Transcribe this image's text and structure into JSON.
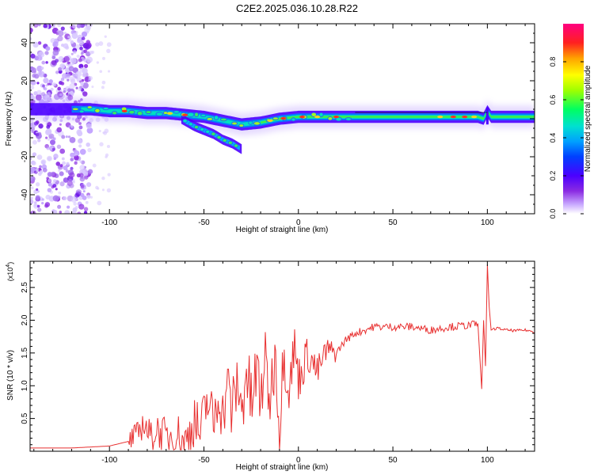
{
  "figure": {
    "title": "C2E2.2025.036.10.28.R22"
  },
  "colors": {
    "snr_line": "#e83030",
    "ridge": [
      "#4a00f0",
      "#2a70ff",
      "#00e0d0",
      "#30f030",
      "#ffd020",
      "#ff2020"
    ]
  },
  "chart_data": [
    {
      "type": "heatmap",
      "xlabel": "Height of straight line (km)",
      "ylabel": "Frequency (Hz)",
      "xlim": [
        -142,
        125
      ],
      "ylim": [
        -50,
        50
      ],
      "x_ticks": [
        -100,
        -50,
        0,
        50,
        100
      ],
      "y_ticks": [
        -40,
        -20,
        0,
        20,
        40
      ],
      "grid": false,
      "colorbar": {
        "label": "Normalized spectral amplitude",
        "range": [
          0,
          1
        ],
        "ticks": [
          "0.0",
          "0.2",
          "0.4",
          "0.6",
          "0.8"
        ],
        "tick_values": [
          0,
          0.2,
          0.4,
          0.6,
          0.8
        ],
        "colors": [
          "#ffffff",
          "#c8a8ff",
          "#8a2be2",
          "#4b00ff",
          "#0040ff",
          "#00a0ff",
          "#00e0d0",
          "#00ff60",
          "#a0ff00",
          "#ffff00",
          "#ffa000",
          "#ff2020",
          "#ff0080"
        ]
      },
      "main_ridge": {
        "x": [
          -142,
          -130,
          -120,
          -110,
          -100,
          -90,
          -80,
          -70,
          -60,
          -50,
          -40,
          -30,
          -20,
          -10,
          0,
          10,
          20,
          40,
          60,
          80,
          95,
          98,
          100,
          102,
          110,
          125
        ],
        "y": [
          5,
          5,
          5,
          5,
          4,
          4,
          3,
          3,
          2,
          1,
          -1,
          -3,
          -2,
          0,
          1,
          1,
          1,
          1,
          1,
          1,
          1,
          0,
          4,
          1,
          1,
          1
        ]
      },
      "secondary_branch": {
        "x": [
          -62,
          -55,
          -50,
          -45,
          -40,
          -35,
          -30
        ],
        "y": [
          0,
          -4,
          -6,
          -8,
          -11,
          -13,
          -16
        ]
      }
    },
    {
      "type": "line",
      "xlabel": "Height of straight line (km)",
      "ylabel": "SNR (10 * v/v)",
      "exponent_label": "(x10",
      "exponent_sup": "4",
      "exponent_close": ")",
      "xlim": [
        -142,
        125
      ],
      "ylim": [
        0,
        2.9
      ],
      "x_ticks": [
        -100,
        -50,
        0,
        50,
        100
      ],
      "y_ticks": [
        0.5,
        1.0,
        1.5,
        2.0,
        2.5
      ],
      "y_tick_labels": [
        "0.5",
        "1.0",
        "1.5",
        "2.0",
        "2.5"
      ],
      "grid": false,
      "series": [
        {
          "x": [
            -142,
            -120,
            -100,
            -90,
            -85,
            -82,
            -78,
            -75,
            -70,
            -65,
            -60,
            -55,
            -52,
            -48,
            -45,
            -42,
            -40,
            -38,
            -35,
            -32,
            -30,
            -28,
            -25,
            -22,
            -20,
            -18,
            -15,
            -12,
            -10,
            -8,
            -5,
            -2,
            0,
            5,
            10,
            15,
            20,
            25,
            30,
            35,
            40,
            50,
            60,
            70,
            80,
            90,
            95,
            97,
            98,
            99,
            100,
            101,
            102,
            105,
            110,
            115,
            120,
            125
          ],
          "y": [
            0.05,
            0.05,
            0.08,
            0.15,
            0.25,
            0.45,
            0.2,
            0.35,
            0.2,
            0.3,
            0.1,
            0.5,
            0.25,
            0.8,
            0.4,
            0.95,
            0.5,
            1.05,
            0.6,
            1.1,
            0.5,
            1.3,
            0.7,
            1.2,
            0.75,
            1.4,
            0.8,
            1.55,
            0.2,
            1.5,
            1.0,
            1.6,
            1.1,
            1.5,
            1.2,
            1.55,
            1.5,
            1.7,
            1.8,
            1.85,
            1.9,
            1.9,
            1.9,
            1.85,
            1.9,
            1.92,
            1.95,
            0.95,
            2.0,
            1.3,
            2.85,
            2.2,
            1.85,
            1.88,
            1.85,
            1.84,
            1.85,
            1.82
          ]
        }
      ]
    }
  ]
}
